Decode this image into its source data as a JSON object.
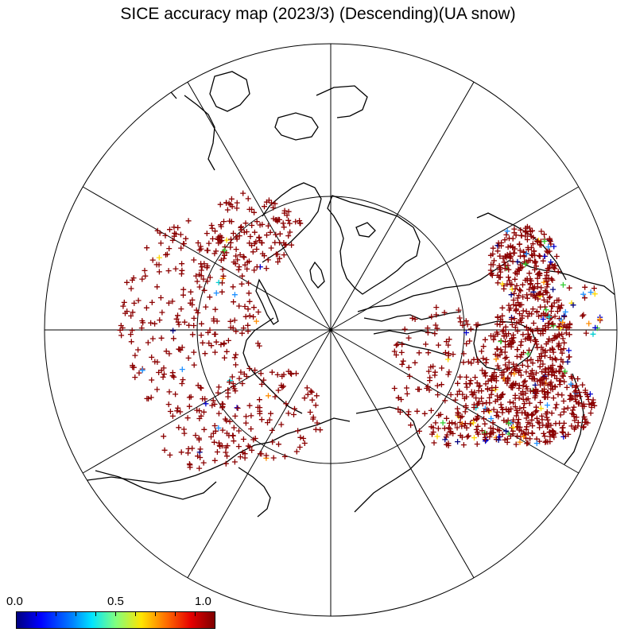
{
  "title": "SICE accuracy map (2023/3) (Descending)(UA snow)",
  "projection": "north-polar-stereographic",
  "colorbar": {
    "labels": [
      "0.0",
      "0.5",
      "1.0"
    ],
    "min": 0.0,
    "max": 1.0,
    "colors": [
      "#00007f",
      "#0000ff",
      "#0080ff",
      "#00e5ff",
      "#7fff7f",
      "#ffe500",
      "#ff6a00",
      "#e50000",
      "#7f0000"
    ]
  },
  "marker_symbol": "plus",
  "dominant_marker_color": "#8b0000",
  "map_elements": [
    "graticule",
    "coastlines",
    "station-markers"
  ]
}
